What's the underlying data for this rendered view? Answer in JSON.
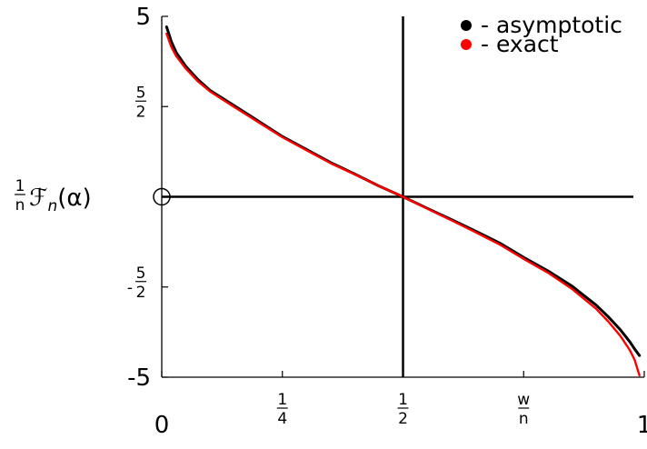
{
  "chart_data": {
    "type": "line",
    "title": "",
    "xlabel": {
      "num": "w",
      "den": "n"
    },
    "ylabel": {
      "num": "1",
      "den": "n",
      "expr": "ℱ",
      "sub": "n",
      "arg": "(α)"
    },
    "xlim": [
      0,
      1
    ],
    "ylim": [
      -5,
      5
    ],
    "grid": false,
    "legend_position": "top-right",
    "x_ticks": [
      {
        "value": 0,
        "label": "0"
      },
      {
        "value": 0.25,
        "num": "1",
        "den": "4"
      },
      {
        "value": 0.5,
        "num": "1",
        "den": "2"
      },
      {
        "value": 0.75,
        "num": "w",
        "den": "n"
      },
      {
        "value": 1,
        "label": "1"
      }
    ],
    "y_ticks": [
      {
        "value": 5,
        "label": "5"
      },
      {
        "value": 2.5,
        "num": "5",
        "den": "2"
      },
      {
        "value": 0,
        "label": ""
      },
      {
        "value": -2.5,
        "prefix": "-",
        "num": "5",
        "den": "2"
      },
      {
        "value": -5,
        "label": "-5"
      }
    ],
    "reference_lines": {
      "x": 0.5,
      "y": 0
    },
    "origin_marker": {
      "x": 0,
      "y": 0
    },
    "series": [
      {
        "name": "- asymptotic",
        "color": "#000000",
        "x": [
          0.01,
          0.02,
          0.03,
          0.05,
          0.075,
          0.1,
          0.15,
          0.2,
          0.25,
          0.3,
          0.35,
          0.4,
          0.45,
          0.5,
          0.55,
          0.6,
          0.65,
          0.7,
          0.75,
          0.8,
          0.85,
          0.9,
          0.925,
          0.95,
          0.97,
          0.98,
          0.99
        ],
        "y": [
          4.71,
          4.3,
          4.0,
          3.61,
          3.25,
          2.95,
          2.53,
          2.1,
          1.67,
          1.31,
          0.95,
          0.63,
          0.3,
          0.0,
          -0.32,
          -0.63,
          -0.95,
          -1.28,
          -1.68,
          -2.05,
          -2.47,
          -3.0,
          -3.32,
          -3.68,
          -4.02,
          -4.22,
          -4.4
        ]
      },
      {
        "name": "- exact",
        "color": "#ff0000",
        "x": [
          0.01,
          0.02,
          0.03,
          0.05,
          0.075,
          0.1,
          0.15,
          0.2,
          0.25,
          0.3,
          0.35,
          0.4,
          0.45,
          0.5,
          0.55,
          0.6,
          0.65,
          0.7,
          0.75,
          0.8,
          0.85,
          0.9,
          0.925,
          0.95,
          0.97,
          0.98,
          0.99
        ],
        "y": [
          4.52,
          4.15,
          3.9,
          3.55,
          3.2,
          2.92,
          2.49,
          2.07,
          1.65,
          1.29,
          0.93,
          0.62,
          0.3,
          0.0,
          -0.33,
          -0.65,
          -0.98,
          -1.32,
          -1.72,
          -2.1,
          -2.55,
          -3.1,
          -3.45,
          -3.85,
          -4.25,
          -4.52,
          -4.95
        ]
      }
    ]
  }
}
